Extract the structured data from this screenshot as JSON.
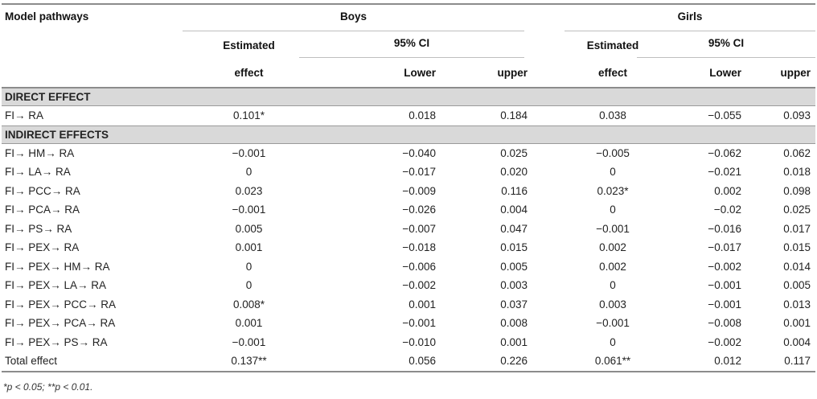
{
  "header": {
    "col_pathways": "Model pathways",
    "group_boys": "Boys",
    "group_girls": "Girls",
    "estimated": "Estimated",
    "effect": "effect",
    "ci": "95% CI",
    "lower": "Lower",
    "upper": "upper"
  },
  "sections": [
    {
      "title": "DIRECT EFFECT",
      "rows": [
        [
          "FI→ RA",
          "0.101*",
          "0.018",
          "0.184",
          "0.038",
          "−0.055",
          "0.093"
        ]
      ]
    },
    {
      "title": "INDIRECT EFFECTS",
      "rows": [
        [
          "FI→ HM→ RA",
          "−0.001",
          "−0.040",
          "0.025",
          "−0.005",
          "−0.062",
          "0.062"
        ],
        [
          "FI→ LA→ RA",
          "0",
          "−0.017",
          "0.020",
          "0",
          "−0.021",
          "0.018"
        ],
        [
          "FI→ PCC→ RA",
          "0.023",
          "−0.009",
          "0.116",
          "0.023*",
          "0.002",
          "0.098"
        ],
        [
          "FI→ PCA→ RA",
          "−0.001",
          "−0.026",
          "0.004",
          "0",
          "−0.02",
          "0.025"
        ],
        [
          "FI→ PS→ RA",
          "0.005",
          "−0.007",
          "0.047",
          "−0.001",
          "−0.016",
          "0.017"
        ],
        [
          "FI→ PEX→ RA",
          "0.001",
          "−0.018",
          "0.015",
          "0.002",
          "−0.017",
          "0.015"
        ],
        [
          "FI→ PEX→ HM→ RA",
          "0",
          "−0.006",
          "0.005",
          "0.002",
          "−0.002",
          "0.014"
        ],
        [
          "FI→ PEX→ LA→ RA",
          "0",
          "−0.002",
          "0.003",
          "0",
          "−0.001",
          "0.005"
        ],
        [
          "FI→ PEX→ PCC→ RA",
          "0.008*",
          "0.001",
          "0.037",
          "0.003",
          "−0.001",
          "0.013"
        ],
        [
          "FI→ PEX→ PCA→ RA",
          "0.001",
          "−0.001",
          "0.008",
          "−0.001",
          "−0.008",
          "0.001"
        ],
        [
          "FI→ PEX→ PS→ RA",
          "−0.001",
          "−0.010",
          "0.001",
          "0",
          "−0.002",
          "0.004"
        ],
        [
          "Total effect",
          "0.137**",
          "0.056",
          "0.226",
          "0.061**",
          "0.012",
          "0.117"
        ]
      ]
    }
  ],
  "footnote": "*p < 0.05; **p < 0.01."
}
